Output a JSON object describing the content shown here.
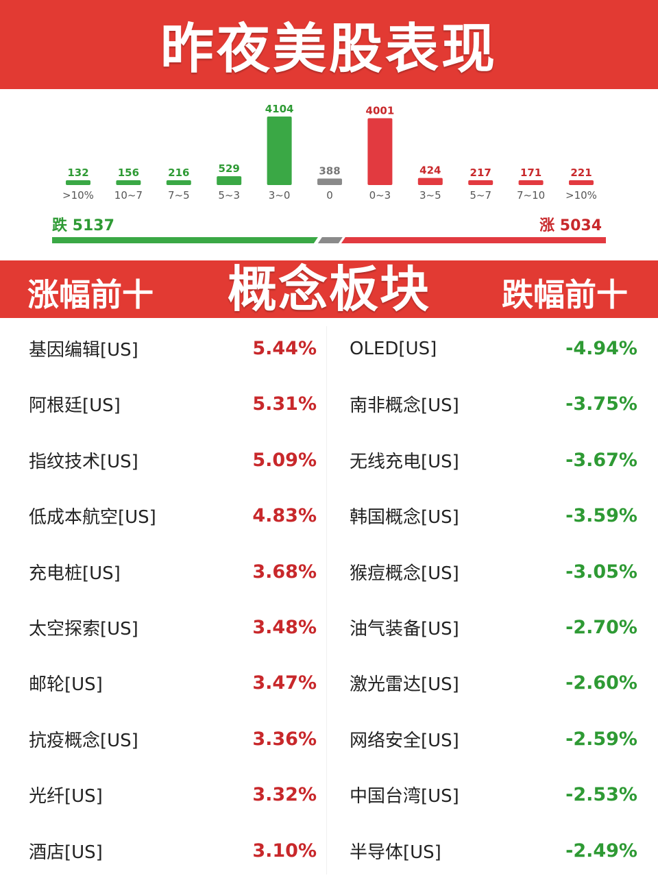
{
  "header": {
    "title": "昨夜美股表现"
  },
  "chart_data": {
    "type": "bar",
    "categories": [
      ">10%",
      "10~7",
      "7~5",
      "5~3",
      "3~0",
      "0",
      "0~3",
      "3~5",
      "5~7",
      "7~10",
      ">10%"
    ],
    "values": [
      132,
      156,
      216,
      529,
      4104,
      388,
      4001,
      424,
      217,
      171,
      221
    ],
    "bar_colors": [
      "#3aa845",
      "#3aa845",
      "#3aa845",
      "#3aa845",
      "#3aa845",
      "#8a8a8a",
      "#e23a40",
      "#e23a40",
      "#e23a40",
      "#e23a40",
      "#e23a40"
    ],
    "label_colors": [
      "#2e9a34",
      "#2e9a34",
      "#2e9a34",
      "#2e9a34",
      "#2e9a34",
      "#777777",
      "#c8282b",
      "#c8282b",
      "#c8282b",
      "#c8282b",
      "#c8282b"
    ],
    "ylim": [
      0,
      4104
    ],
    "grid": false
  },
  "summary": {
    "down_label": "跌",
    "down_count": "5137",
    "up_label": "涨",
    "up_count": "5034",
    "down_color": "#3aa845",
    "flat_color": "#8a8a8a",
    "up_color": "#e23a40"
  },
  "sections": {
    "gainers_title": "涨幅前十",
    "main_title": "概念板块",
    "losers_title": "跌幅前十"
  },
  "gainers": [
    {
      "name": "基因编辑[US]",
      "pct": "5.44%"
    },
    {
      "name": "阿根廷[US]",
      "pct": "5.31%"
    },
    {
      "name": "指纹技术[US]",
      "pct": "5.09%"
    },
    {
      "name": "低成本航空[US]",
      "pct": "4.83%"
    },
    {
      "name": "充电桩[US]",
      "pct": "3.68%"
    },
    {
      "name": "太空探索[US]",
      "pct": "3.48%"
    },
    {
      "name": "邮轮[US]",
      "pct": "3.47%"
    },
    {
      "name": "抗疫概念[US]",
      "pct": "3.36%"
    },
    {
      "name": "光纤[US]",
      "pct": "3.32%"
    },
    {
      "name": "酒店[US]",
      "pct": "3.10%"
    }
  ],
  "losers": [
    {
      "name": "OLED[US]",
      "pct": "-4.94%"
    },
    {
      "name": "南非概念[US]",
      "pct": "-3.75%"
    },
    {
      "name": "无线充电[US]",
      "pct": "-3.67%"
    },
    {
      "name": "韩国概念[US]",
      "pct": "-3.59%"
    },
    {
      "name": "猴痘概念[US]",
      "pct": "-3.05%"
    },
    {
      "name": "油气装备[US]",
      "pct": "-2.70%"
    },
    {
      "name": "激光雷达[US]",
      "pct": "-2.60%"
    },
    {
      "name": "网络安全[US]",
      "pct": "-2.59%"
    },
    {
      "name": "中国台湾[US]",
      "pct": "-2.53%"
    },
    {
      "name": "半导体[US]",
      "pct": "-2.49%"
    }
  ]
}
